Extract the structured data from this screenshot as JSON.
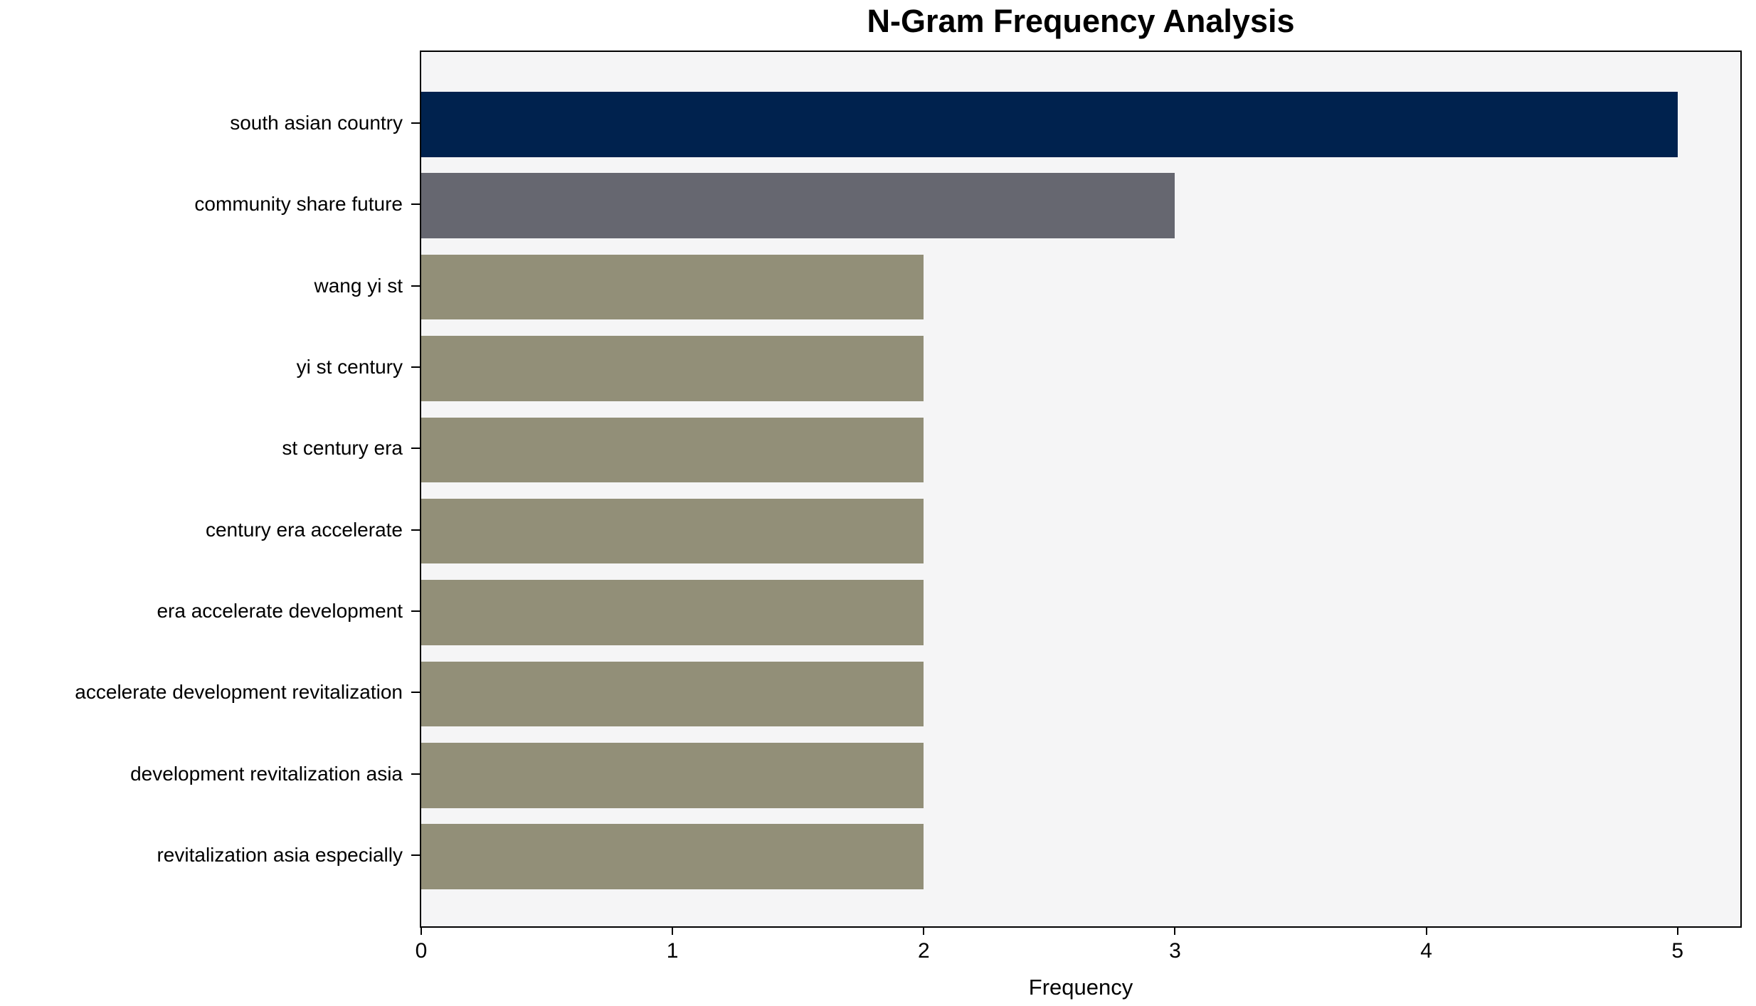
{
  "chart_data": {
    "type": "bar",
    "orientation": "horizontal",
    "title": "N-Gram Frequency Analysis",
    "xlabel": "Frequency",
    "ylabel": "",
    "categories": [
      "south asian country",
      "community share future",
      "wang yi st",
      "yi st century",
      "st century era",
      "century era accelerate",
      "era accelerate development",
      "accelerate development revitalization",
      "development revitalization asia",
      "revitalization asia especially"
    ],
    "values": [
      5,
      3,
      2,
      2,
      2,
      2,
      2,
      2,
      2,
      2
    ],
    "bar_colors": [
      "#00224E",
      "#666770",
      "#928F78",
      "#928F78",
      "#928F78",
      "#928F78",
      "#928F78",
      "#928F78",
      "#928F78",
      "#928F78"
    ],
    "x_ticks": [
      0,
      1,
      2,
      3,
      4,
      5
    ],
    "xlim": [
      0,
      5.25
    ],
    "grid": false,
    "legend": "none",
    "plot_background": "#f5f5f6",
    "figure_background": "#ffffff",
    "frame_color": "#000000"
  }
}
